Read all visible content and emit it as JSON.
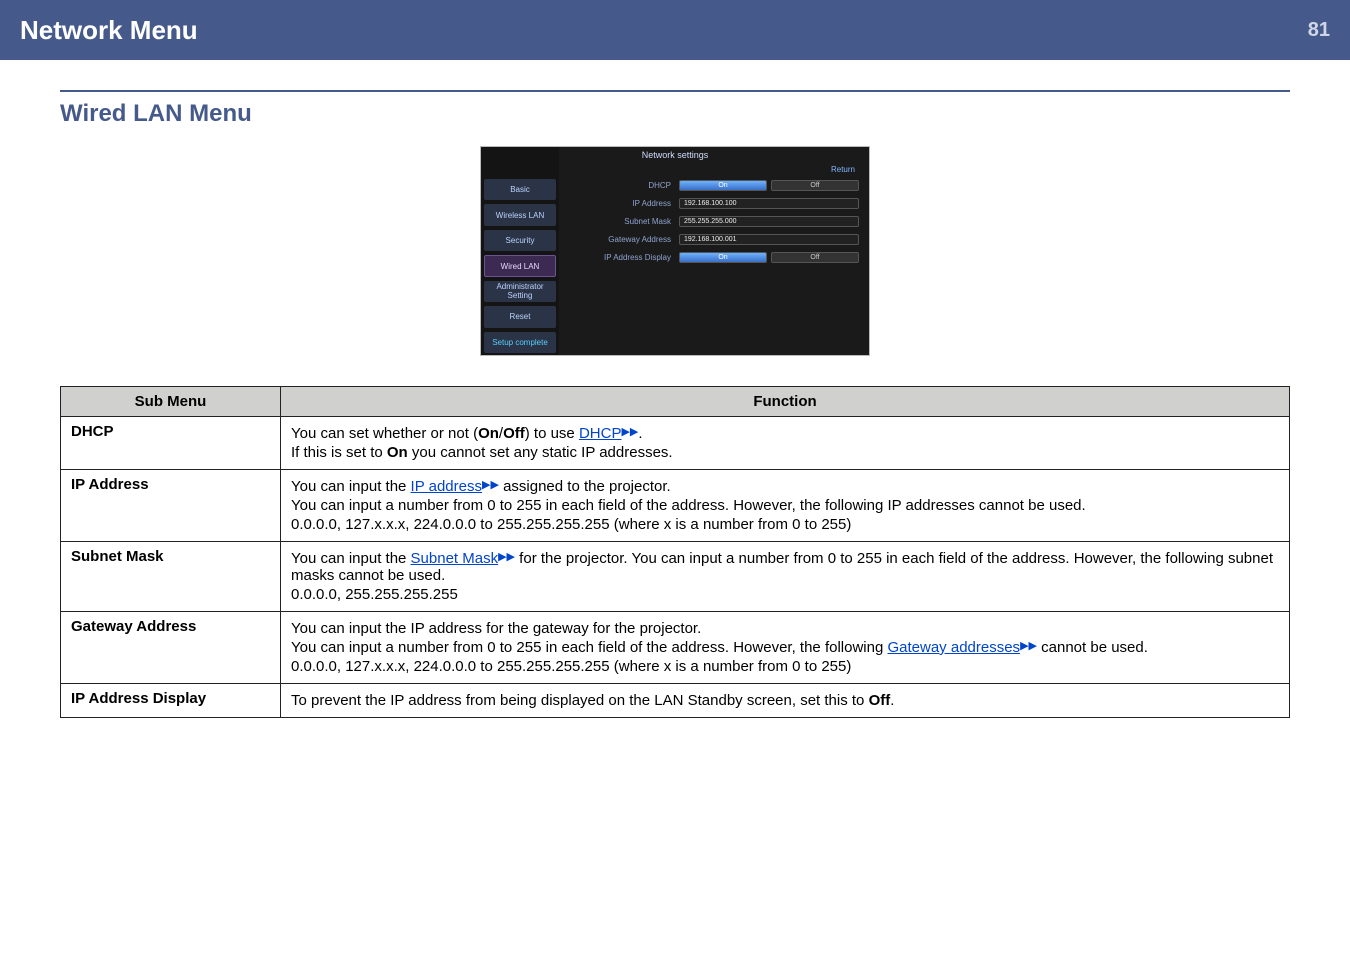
{
  "header": {
    "title": "Network Menu",
    "page_number": "81"
  },
  "section_title": "Wired LAN Menu",
  "screenshot": {
    "title": "Network settings",
    "return_label": "Return",
    "sidebar": [
      {
        "label": "Basic",
        "active": false
      },
      {
        "label": "Wireless LAN",
        "active": false
      },
      {
        "label": "Security",
        "active": false
      },
      {
        "label": "Wired LAN",
        "active": true
      },
      {
        "label": "Administrator Setting",
        "active": false
      },
      {
        "label": "Reset",
        "active": false
      },
      {
        "label": "Setup complete",
        "active": false
      }
    ],
    "rows": {
      "dhcp": {
        "label": "DHCP",
        "on": "On",
        "off": "Off"
      },
      "ip": {
        "label": "IP Address",
        "value": "192.168.100.100"
      },
      "subnet": {
        "label": "Subnet Mask",
        "value": "255.255.255.000"
      },
      "gateway": {
        "label": "Gateway Address",
        "value": "192.168.100.001"
      },
      "display": {
        "label": "IP Address Display",
        "on": "On",
        "off": "Off"
      }
    }
  },
  "table": {
    "headers": {
      "sub": "Sub Menu",
      "func": "Function"
    },
    "dhcp": {
      "name": "DHCP",
      "l1_pre": "You can set whether or not (",
      "on": "On",
      "slash": "/",
      "off": "Off",
      "l1_post": ") to use ",
      "link": "DHCP",
      "l1_end": ".",
      "l2_pre": "If this is set to ",
      "l2_on": "On",
      "l2_post": " you cannot set any static IP addresses."
    },
    "ip": {
      "name": "IP Address",
      "l1_pre": "You can input the ",
      "link": "IP address",
      "l1_post": " assigned to the projector.",
      "l2": "You can input a number from 0 to 255 in each field of the address. However, the following IP addresses cannot be used.",
      "l3": "0.0.0.0, 127.x.x.x, 224.0.0.0 to 255.255.255.255 (where x is a number from 0 to 255)"
    },
    "subnet": {
      "name": "Subnet Mask",
      "l1_pre": "You can input the ",
      "link": "Subnet Mask",
      "l1_post": " for the projector. You can input a number from 0 to 255 in each field of the address. However, the following subnet masks cannot be used.",
      "l2": "0.0.0.0, 255.255.255.255"
    },
    "gateway": {
      "name": "Gateway Address",
      "l1": "You can input the IP address for the gateway for the projector.",
      "l2_pre": "You can input a number from 0 to 255 in each field of the address. However, the following ",
      "link": "Gateway addresses",
      "l2_post": " cannot be used.",
      "l3": "0.0.0.0, 127.x.x.x, 224.0.0.0 to 255.255.255.255 (where x is a number from 0 to 255)"
    },
    "display": {
      "name": "IP Address Display",
      "l1_pre": "To prevent the IP address from being displayed on the LAN Standby screen, set this to ",
      "off": "Off",
      "l1_end": "."
    }
  },
  "glyph": "▶▶"
}
